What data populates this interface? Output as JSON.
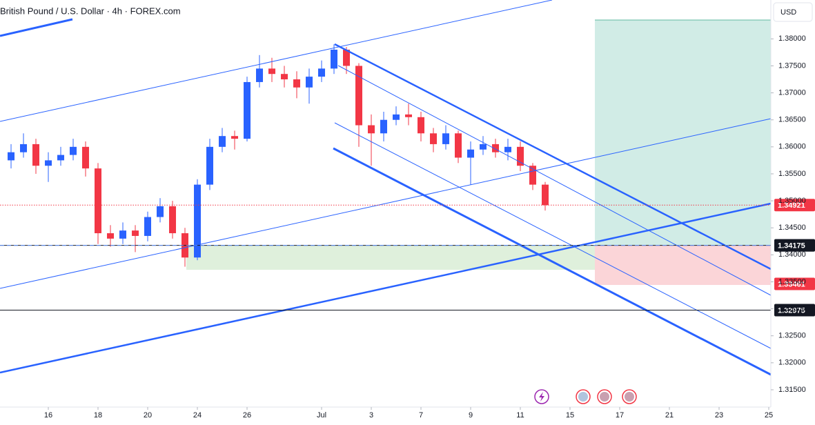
{
  "chart_data": {
    "type": "candlestick",
    "title": "British Pound / U.S. Dollar · 4h · FOREX.com",
    "currency": "USD",
    "up_color": "#2962ff",
    "down_color": "#f23645",
    "x": [
      -9,
      -6,
      -3,
      0,
      3,
      6,
      9,
      12,
      15,
      18,
      21,
      24,
      27,
      30,
      33,
      36,
      39,
      42,
      45,
      48,
      51,
      54,
      57,
      60,
      63,
      66,
      69,
      72,
      75,
      78,
      81,
      84,
      87,
      90,
      93,
      96,
      99,
      102,
      105,
      108,
      111,
      114,
      117,
      120
    ],
    "open": [
      1.3575,
      1.359,
      1.3605,
      1.3565,
      1.3575,
      1.3585,
      1.36,
      1.356,
      1.344,
      1.343,
      1.3445,
      1.3435,
      1.347,
      1.349,
      1.344,
      1.3395,
      1.353,
      1.36,
      1.362,
      1.3615,
      1.372,
      1.3745,
      1.3735,
      1.3725,
      1.371,
      1.373,
      1.3745,
      1.378,
      1.375,
      1.364,
      1.3625,
      1.365,
      1.366,
      1.3655,
      1.3625,
      1.3605,
      1.3625,
      1.358,
      1.3595,
      1.3605,
      1.359,
      1.36,
      1.3565,
      1.353
    ],
    "high": [
      1.3605,
      1.3625,
      1.3615,
      1.359,
      1.36,
      1.3615,
      1.361,
      1.357,
      1.3455,
      1.346,
      1.3455,
      1.348,
      1.3505,
      1.35,
      1.345,
      1.354,
      1.3615,
      1.3635,
      1.363,
      1.373,
      1.377,
      1.3765,
      1.375,
      1.374,
      1.3745,
      1.376,
      1.379,
      1.3785,
      1.3755,
      1.366,
      1.3665,
      1.3675,
      1.368,
      1.3665,
      1.3635,
      1.364,
      1.363,
      1.361,
      1.362,
      1.3615,
      1.3615,
      1.361,
      1.357,
      1.3535
    ],
    "low": [
      1.356,
      1.358,
      1.355,
      1.3535,
      1.3565,
      1.3575,
      1.3545,
      1.342,
      1.3415,
      1.342,
      1.3405,
      1.3425,
      1.346,
      1.343,
      1.3378,
      1.339,
      1.352,
      1.359,
      1.3595,
      1.361,
      1.371,
      1.372,
      1.371,
      1.369,
      1.368,
      1.372,
      1.3735,
      1.3735,
      1.36,
      1.3565,
      1.361,
      1.364,
      1.364,
      1.361,
      1.359,
      1.3595,
      1.357,
      1.353,
      1.3585,
      1.358,
      1.3575,
      1.3555,
      1.352,
      1.3482
    ],
    "close": [
      1.359,
      1.3605,
      1.3565,
      1.3575,
      1.3585,
      1.36,
      1.356,
      1.344,
      1.343,
      1.3445,
      1.3435,
      1.347,
      1.349,
      1.344,
      1.3395,
      1.353,
      1.36,
      1.362,
      1.3615,
      1.372,
      1.3745,
      1.3735,
      1.3725,
      1.371,
      1.373,
      1.3745,
      1.378,
      1.375,
      1.364,
      1.3625,
      1.365,
      1.366,
      1.3655,
      1.3625,
      1.3605,
      1.3625,
      1.358,
      1.3595,
      1.3605,
      1.359,
      1.36,
      1.3565,
      1.353,
      1.3492
    ],
    "xlim": [
      -11.67,
      174.5
    ],
    "xticks": [
      {
        "value": 0,
        "label": "16"
      },
      {
        "value": 12,
        "label": "18"
      },
      {
        "value": 24,
        "label": "20"
      },
      {
        "value": 36,
        "label": "24"
      },
      {
        "value": 48,
        "label": "26"
      },
      {
        "value": 66,
        "label": "Jul"
      },
      {
        "value": 78,
        "label": "3"
      },
      {
        "value": 90,
        "label": "7"
      },
      {
        "value": 102,
        "label": "9"
      },
      {
        "value": 114,
        "label": "11"
      },
      {
        "value": 126,
        "label": "15"
      },
      {
        "value": 138,
        "label": "17"
      },
      {
        "value": 150,
        "label": "21"
      },
      {
        "value": 162,
        "label": "23"
      },
      {
        "value": 174,
        "label": "25"
      }
    ],
    "ylim": [
      1.3118,
      1.3872
    ],
    "yticks": [
      {
        "value": 1.315,
        "label": "1.31500"
      },
      {
        "value": 1.32,
        "label": "1.32000"
      },
      {
        "value": 1.325,
        "label": "1.32500"
      },
      {
        "value": 1.33,
        "label": "1.33000"
      },
      {
        "value": 1.335,
        "label": "1.33500"
      },
      {
        "value": 1.34,
        "label": "1.34000"
      },
      {
        "value": 1.345,
        "label": "1.34500"
      },
      {
        "value": 1.35,
        "label": "1.35000"
      },
      {
        "value": 1.355,
        "label": "1.35500"
      },
      {
        "value": 1.36,
        "label": "1.36000"
      },
      {
        "value": 1.365,
        "label": "1.36500"
      },
      {
        "value": 1.37,
        "label": "1.37000"
      },
      {
        "value": 1.375,
        "label": "1.37500"
      },
      {
        "value": 1.38,
        "label": "1.38000"
      }
    ],
    "price_labels": [
      {
        "value": 1.34921,
        "label": "1.34921",
        "color": "#f23645",
        "line": "dotted"
      },
      {
        "value": 1.34176,
        "label": "1.34176",
        "color": "#4a4e5a",
        "line": "solid"
      },
      {
        "value": 1.34175,
        "label": "1.34175",
        "color": "#131722",
        "line": "dashed"
      },
      {
        "value": 1.33461,
        "label": "1.33461",
        "color": "#f23645",
        "line": null
      },
      {
        "value": 1.32975,
        "label": "1.32975",
        "color": "#131722",
        "line": "solid"
      }
    ]
  }
}
